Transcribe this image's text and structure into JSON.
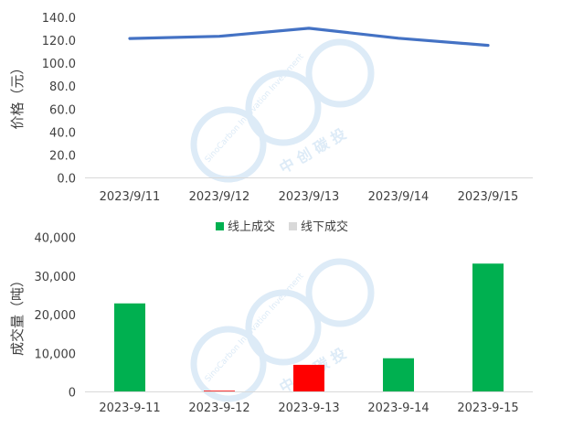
{
  "colors": {
    "line": "#4472C4",
    "online": "#00B050",
    "offline": "#D9D9D9",
    "highlight": "#FF0000",
    "axis": "#D9D9D9",
    "text": "#404040",
    "watermark": "#DDEBF7"
  },
  "watermark": {
    "latin": "SinoCarbon Innovation Investment",
    "cjk": "中 创 碳 投"
  },
  "chart_data": [
    {
      "type": "line",
      "ylabel": "价格（元）",
      "categories": [
        "2023/9/11",
        "2023/9/12",
        "2023/9/13",
        "2023/9/14",
        "2023/9/15"
      ],
      "values": [
        121.6,
        123.5,
        130.5,
        121.8,
        115.6
      ],
      "ylim": [
        0,
        140
      ],
      "yticks": [
        "0.0",
        "20.0",
        "40.0",
        "60.0",
        "80.0",
        "100.0",
        "120.0",
        "140.0"
      ],
      "grid": false
    },
    {
      "type": "bar",
      "ylabel": "成交量（吨）",
      "legend": {
        "position": "top",
        "items": [
          "线上成交",
          "线下成交"
        ]
      },
      "categories": [
        "2023-9-11",
        "2023-9-12",
        "2023-9-13",
        "2023-9-14",
        "2023-9-15"
      ],
      "series": [
        {
          "name": "线上成交",
          "values": [
            22900,
            300,
            7000,
            8700,
            33200
          ],
          "bar_colors": [
            "#00B050",
            "#FF0000",
            "#FF0000",
            "#00B050",
            "#00B050"
          ]
        },
        {
          "name": "线下成交",
          "values": [
            0,
            0,
            0,
            0,
            0
          ]
        }
      ],
      "ylim": [
        0,
        40000
      ],
      "yticks": [
        "0",
        "10,000",
        "20,000",
        "30,000",
        "40,000"
      ],
      "grid": false
    }
  ]
}
